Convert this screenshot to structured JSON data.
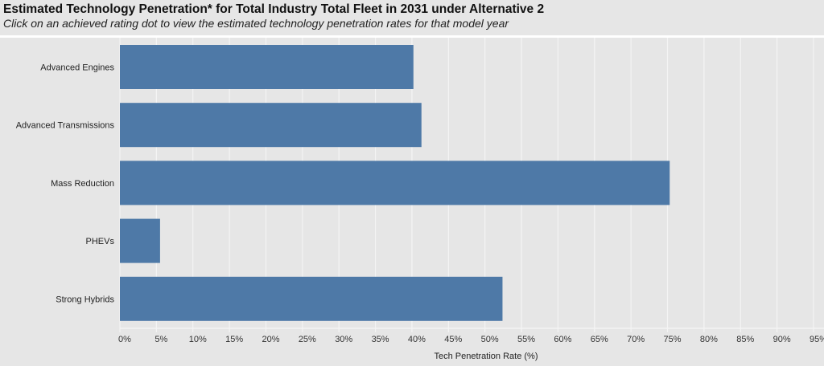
{
  "header": {
    "title": "Estimated Technology Penetration* for Total Industry Total Fleet in 2031 under Alternative 2",
    "subtitle": "Click on an achieved rating dot to view the estimated technology penetration rates for that model year"
  },
  "colors": {
    "bar": "#4e79a7",
    "background": "#e6e6e6",
    "gridline": "#f4f4f4"
  },
  "chart_data": {
    "type": "bar",
    "orientation": "horizontal",
    "title": "Estimated Technology Penetration* for Total Industry Total Fleet in 2031 under Alternative 2",
    "subtitle": "Click on an achieved rating dot to view the estimated technology penetration rates for that model year",
    "xlabel": "Tech Penetration Rate (%)",
    "ylabel": "",
    "categories": [
      "Advanced Engines",
      "Advanced Transmissions",
      "Mass Reduction",
      "PHEVs",
      "Strong Hybrids"
    ],
    "values": [
      40.2,
      41.3,
      75.3,
      5.5,
      52.4
    ],
    "xlim": [
      0,
      96
    ],
    "xticks": [
      0,
      5,
      10,
      15,
      20,
      25,
      30,
      35,
      40,
      45,
      50,
      55,
      60,
      65,
      70,
      75,
      80,
      85,
      90,
      95
    ],
    "xtick_labels": [
      "0%",
      "5%",
      "10%",
      "15%",
      "20%",
      "25%",
      "30%",
      "35%",
      "40%",
      "45%",
      "50%",
      "55%",
      "60%",
      "65%",
      "70%",
      "75%",
      "80%",
      "85%",
      "90%",
      "95%"
    ],
    "grid": true,
    "legend": "none"
  }
}
